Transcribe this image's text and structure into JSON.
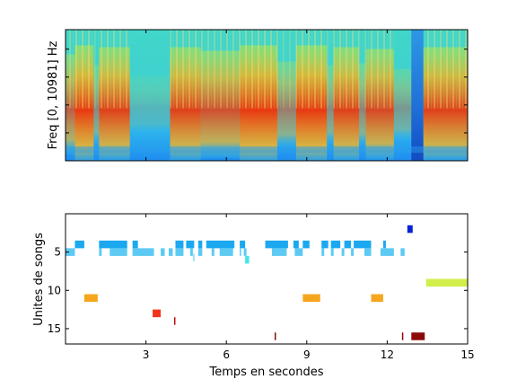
{
  "chart_data": [
    {
      "type": "heatmap",
      "title": "",
      "xlabel": "",
      "ylabel": "Freq [0, 10981] Hz",
      "xlim": [
        0,
        15
      ],
      "ylim": [
        0,
        10981
      ],
      "grid": false,
      "bursts": [
        {
          "start": 0.0,
          "end": 0.35,
          "intensity": 0.75
        },
        {
          "start": 0.35,
          "end": 1.05,
          "intensity": 1.0
        },
        {
          "start": 1.05,
          "end": 1.25,
          "intensity": 0.45
        },
        {
          "start": 1.25,
          "end": 2.4,
          "intensity": 0.95
        },
        {
          "start": 2.4,
          "end": 3.9,
          "intensity": 0.15
        },
        {
          "start": 3.9,
          "end": 5.05,
          "intensity": 0.95
        },
        {
          "start": 5.05,
          "end": 6.5,
          "intensity": 0.85
        },
        {
          "start": 6.5,
          "end": 7.9,
          "intensity": 1.0
        },
        {
          "start": 7.9,
          "end": 8.6,
          "intensity": 0.55
        },
        {
          "start": 8.6,
          "end": 9.75,
          "intensity": 1.0
        },
        {
          "start": 9.75,
          "end": 10.0,
          "intensity": 0.45
        },
        {
          "start": 10.0,
          "end": 10.95,
          "intensity": 0.95
        },
        {
          "start": 10.95,
          "end": 11.2,
          "intensity": 0.5
        },
        {
          "start": 11.2,
          "end": 12.25,
          "intensity": 0.9
        },
        {
          "start": 12.25,
          "end": 12.9,
          "intensity": 0.35
        },
        {
          "start": 12.9,
          "end": 13.35,
          "intensity": -1.0
        },
        {
          "start": 13.35,
          "end": 15.0,
          "intensity": 0.95
        }
      ]
    },
    {
      "type": "scatter",
      "title": "",
      "xlabel": "Temps en secondes",
      "ylabel": "Unites de songs",
      "xlim": [
        0,
        15
      ],
      "ylim": [
        17,
        0
      ],
      "xticks": [
        3,
        6,
        9,
        12,
        15
      ],
      "yticks": [
        5,
        10,
        15
      ],
      "grid": false,
      "units": [
        {
          "unit": 2,
          "color": "#0a22d6",
          "segments": [
            [
              12.75,
              12.95
            ]
          ]
        },
        {
          "unit": 4,
          "color": "#1ba8f0",
          "segments": [
            [
              0.35,
              0.7
            ],
            [
              1.25,
              2.3
            ],
            [
              2.5,
              2.7
            ],
            [
              4.1,
              4.4
            ],
            [
              4.5,
              4.8
            ],
            [
              4.95,
              5.1
            ],
            [
              5.25,
              6.3
            ],
            [
              6.5,
              6.7
            ],
            [
              7.45,
              8.3
            ],
            [
              8.5,
              8.7
            ],
            [
              8.85,
              9.1
            ],
            [
              9.55,
              9.8
            ],
            [
              9.9,
              10.25
            ],
            [
              10.4,
              10.65
            ],
            [
              10.75,
              11.4
            ],
            [
              11.85,
              11.95
            ]
          ]
        },
        {
          "unit": 5,
          "color": "#5ccaf3",
          "segments": [
            [
              0.0,
              0.35
            ],
            [
              1.25,
              1.35
            ],
            [
              1.65,
              2.3
            ],
            [
              2.5,
              3.3
            ],
            [
              3.55,
              3.7
            ],
            [
              3.85,
              4.0
            ],
            [
              4.1,
              4.4
            ],
            [
              4.65,
              4.75
            ],
            [
              4.95,
              5.1
            ],
            [
              5.45,
              5.55
            ],
            [
              5.75,
              6.25
            ],
            [
              6.5,
              6.55
            ],
            [
              6.65,
              6.75
            ],
            [
              7.7,
              8.25
            ],
            [
              8.55,
              8.85
            ],
            [
              9.55,
              9.65
            ],
            [
              9.9,
              10.0
            ],
            [
              10.3,
              10.4
            ],
            [
              10.65,
              10.75
            ],
            [
              11.15,
              11.4
            ],
            [
              11.75,
              12.25
            ],
            [
              12.5,
              12.65
            ]
          ]
        },
        {
          "unit": 5.7,
          "color": "#a6e4f5",
          "segments": [
            [
              4.75,
              4.82
            ]
          ]
        },
        {
          "unit": 6,
          "color": "#47e6e6",
          "segments": [
            [
              6.7,
              6.85
            ]
          ]
        },
        {
          "unit": 9,
          "color": "#d0ef4c",
          "segments": [
            [
              13.45,
              15.0
            ]
          ]
        },
        {
          "unit": 11,
          "color": "#f6a61e",
          "segments": [
            [
              0.7,
              1.2
            ],
            [
              8.85,
              9.5
            ],
            [
              11.4,
              11.85
            ]
          ]
        },
        {
          "unit": 13,
          "color": "#f3341c",
          "segments": [
            [
              3.25,
              3.55
            ]
          ]
        },
        {
          "unit": 14,
          "color": "#c10a0a",
          "segments": [
            [
              4.05,
              4.1
            ]
          ]
        },
        {
          "unit": 16,
          "color": "#8c0909",
          "segments": [
            [
              7.8,
              7.85
            ],
            [
              12.55,
              12.6
            ],
            [
              12.9,
              13.4
            ]
          ]
        }
      ]
    }
  ]
}
